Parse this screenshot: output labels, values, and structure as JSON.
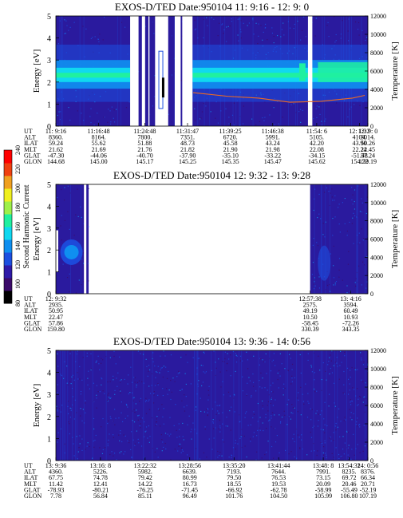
{
  "colors": {
    "background": "#2a1a9e",
    "palette": [
      "#000000",
      "#3b0a6a",
      "#2f1aa8",
      "#1c4fe0",
      "#0f8ff0",
      "#10d8f0",
      "#20f0a0",
      "#9ef04a",
      "#f0f020",
      "#f0a020",
      "#f04010",
      "#ff0000"
    ]
  },
  "colorbar": {
    "label": "Second Harmonic Current",
    "ticks": [
      "80",
      "100",
      "120",
      "140",
      "160",
      "180",
      "200",
      "220",
      "240"
    ]
  },
  "chart_data": [
    {
      "type": "heatmap",
      "title": "EXOS-D/TED   Date:950104  11: 9:16 - 12: 9: 0",
      "ylabel": "Energy [eV]",
      "y2label": "Temperature [K]",
      "ylim": [
        0,
        5
      ],
      "y2lim": [
        0,
        12000
      ],
      "yticks": [
        "0",
        "1",
        "2",
        "3",
        "4",
        "5"
      ],
      "y2ticks": [
        "0",
        "2000",
        "4000",
        "6000",
        "8000",
        "10000",
        "12000"
      ],
      "gaps": [
        [
          0.238,
          0.265
        ],
        [
          0.275,
          0.286
        ],
        [
          0.296,
          0.3
        ],
        [
          0.318,
          0.36
        ],
        [
          0.381,
          0.4
        ],
        [
          0.405,
          0.438
        ],
        [
          0.808,
          0.822
        ]
      ],
      "bright_band": {
        "center_eV": 2.3,
        "segments": [
          [
            0,
            0.238
          ],
          [
            0.438,
            1.0
          ]
        ]
      },
      "temperature_curve": [
        [
          0.44,
          3650
        ],
        [
          0.55,
          3250
        ],
        [
          0.65,
          3050
        ],
        [
          0.75,
          2600
        ],
        [
          0.85,
          2700
        ],
        [
          0.95,
          3050
        ],
        [
          0.99,
          3350
        ]
      ],
      "ephemeris_labels": [
        "UT",
        "ALT",
        "ILAT",
        "MLT",
        "GLAT",
        "GLON"
      ],
      "ephemeris": [
        {
          "pos": 0.0,
          "values": [
            "11: 9:16",
            "8360.",
            "59.24",
            "21.62",
            "-47.30",
            "144.68"
          ]
        },
        {
          "pos": 0.137,
          "values": [
            "11:16:48",
            "8164.",
            "55.62",
            "21.69",
            "-44.06",
            "145.00"
          ]
        },
        {
          "pos": 0.285,
          "values": [
            "11:24:48",
            "7800.",
            "51.88",
            "21.76",
            "-40.70",
            "145.17"
          ]
        },
        {
          "pos": 0.422,
          "values": [
            "11:31:47",
            "7351.",
            "48.73",
            "21.82",
            "-37.90",
            "145.25"
          ]
        },
        {
          "pos": 0.559,
          "values": [
            "11:39:25",
            "6720.",
            "45.58",
            "21.90",
            "-35.10",
            "145.35"
          ]
        },
        {
          "pos": 0.695,
          "values": [
            "11:46:38",
            "5991.",
            "43.24",
            "21.98",
            "-33.22",
            "145.47"
          ]
        },
        {
          "pos": 0.836,
          "values": [
            "11:54: 6",
            "5105.",
            "42.20",
            "22.08",
            "-34.15",
            "145.62"
          ]
        },
        {
          "pos": 0.973,
          "values": [
            "12: 1:32",
            "4104.",
            "43.90",
            "22.24",
            "-51.48",
            "154.22"
          ]
        },
        {
          "pos": 1.0,
          "values": [
            "12: 9: 0",
            "3014.",
            "50.26",
            "22.45",
            "57.24",
            "159.19"
          ]
        }
      ]
    },
    {
      "type": "heatmap",
      "title": "EXOS-D/TED   Date:950104  12: 9:32 - 13: 9:28",
      "ylabel": "Energy [eV]",
      "y2label": "Temperature [K]",
      "ylim": [
        0,
        5
      ],
      "y2lim": [
        0,
        12000
      ],
      "yticks": [
        "0",
        "1",
        "2",
        "3",
        "4",
        "5"
      ],
      "y2ticks": [
        "0",
        "2000",
        "4000",
        "6000",
        "8000",
        "10000",
        "12000"
      ],
      "data_segments": [
        [
          0.0,
          0.105
        ],
        [
          0.815,
          1.0
        ]
      ],
      "ephemeris_labels": [
        "UT",
        "ALT",
        "ILAT",
        "MLT",
        "GLAT",
        "GLON"
      ],
      "ephemeris": [
        {
          "pos": 0.0,
          "values": [
            "12: 9:32",
            "2935.",
            "50.95",
            "22.47",
            "57.86",
            "159.80"
          ]
        },
        {
          "pos": 0.815,
          "values": [
            "12:57:38",
            "2575.",
            "49.19",
            "10.50",
            "-58.45",
            "330.39"
          ]
        },
        {
          "pos": 0.945,
          "values": [
            "13: 4:16",
            "3594.",
            "60.49",
            "10.93",
            "-72.26",
            "343.35"
          ]
        }
      ]
    },
    {
      "type": "heatmap",
      "title": "EXOS-D/TED   Date:950104  13: 9:36 - 14: 0:56",
      "ylabel": "Energy [eV]",
      "y2label": "Temperature [K]",
      "ylim": [
        0,
        5
      ],
      "y2lim": [
        0,
        12000
      ],
      "yticks": [
        "0",
        "1",
        "2",
        "3",
        "4",
        "5"
      ],
      "y2ticks": [
        "0",
        "2000",
        "4000",
        "6000",
        "8000",
        "10000",
        "12000"
      ],
      "ephemeris_labels": [
        "UT",
        "ALT",
        "ILAT",
        "MLT",
        "GLAT",
        "GLON"
      ],
      "ephemeris": [
        {
          "pos": 0.0,
          "values": [
            "13: 9:36",
            "4360.",
            "67.75",
            "11.42",
            "-78.93",
            "7.78"
          ]
        },
        {
          "pos": 0.143,
          "values": [
            "13:16: 8",
            "5226.",
            "74.78",
            "12.41",
            "-80.21",
            "56.84"
          ]
        },
        {
          "pos": 0.286,
          "values": [
            "13:22:32",
            "5982.",
            "79.42",
            "14.22",
            "-76.25",
            "85.11"
          ]
        },
        {
          "pos": 0.429,
          "values": [
            "13:28:56",
            "6639.",
            "80.99",
            "16.73",
            "-71.45",
            "96.49"
          ]
        },
        {
          "pos": 0.571,
          "values": [
            "13:35:20",
            "7193.",
            "79.50",
            "18.55",
            "-66.92",
            "101.76"
          ]
        },
        {
          "pos": 0.714,
          "values": [
            "13:41:44",
            "7644.",
            "76.53",
            "19.53",
            "-62.78",
            "104.50"
          ]
        },
        {
          "pos": 0.857,
          "values": [
            "13:48: 8",
            "7991.",
            "73.15",
            "20.09",
            "-58.99",
            "105.99"
          ]
        },
        {
          "pos": 0.94,
          "values": [
            "13:54:32",
            "8235.",
            "69.72",
            "20.46",
            "-55.49",
            "106.80"
          ]
        },
        {
          "pos": 1.0,
          "values": [
            "14: 0:56",
            "8376.",
            "66.34",
            "20.71",
            "-52.19",
            "107.19"
          ]
        }
      ]
    }
  ]
}
